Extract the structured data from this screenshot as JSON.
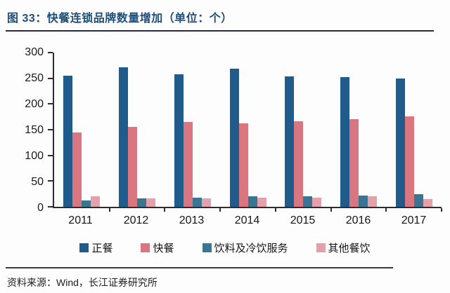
{
  "page": {
    "title": "图 33：快餐连锁品牌数量增加（单位：个）",
    "source": "资料来源：Wind，长江证券研究所"
  },
  "colors": {
    "title_text": "#1F4E79",
    "title_rule": "#262b3d",
    "axis": "#2e2e2e",
    "tick_text": "#1a1a1a"
  },
  "chart_data": {
    "type": "bar",
    "title": "快餐连锁品牌数量增加",
    "unit": "个",
    "categories": [
      "2011",
      "2012",
      "2013",
      "2014",
      "2015",
      "2016",
      "2017"
    ],
    "series": [
      {
        "name": "正餐",
        "color": "#1F5C8B",
        "values": [
          255,
          271,
          258,
          268,
          254,
          252,
          250
        ]
      },
      {
        "name": "快餐",
        "color": "#D9767F",
        "values": [
          145,
          156,
          165,
          162,
          167,
          170,
          176
        ]
      },
      {
        "name": "饮料及冷饮服务",
        "color": "#3A7694",
        "values": [
          12,
          16,
          18,
          20,
          20,
          22,
          25
        ]
      },
      {
        "name": "其他餐饮",
        "color": "#E2A1AB",
        "values": [
          21,
          16,
          17,
          18,
          18,
          20,
          15
        ]
      }
    ],
    "ylim": [
      0,
      300
    ],
    "ytick_interval": 50,
    "grid": false,
    "legend_position": "bottom"
  }
}
